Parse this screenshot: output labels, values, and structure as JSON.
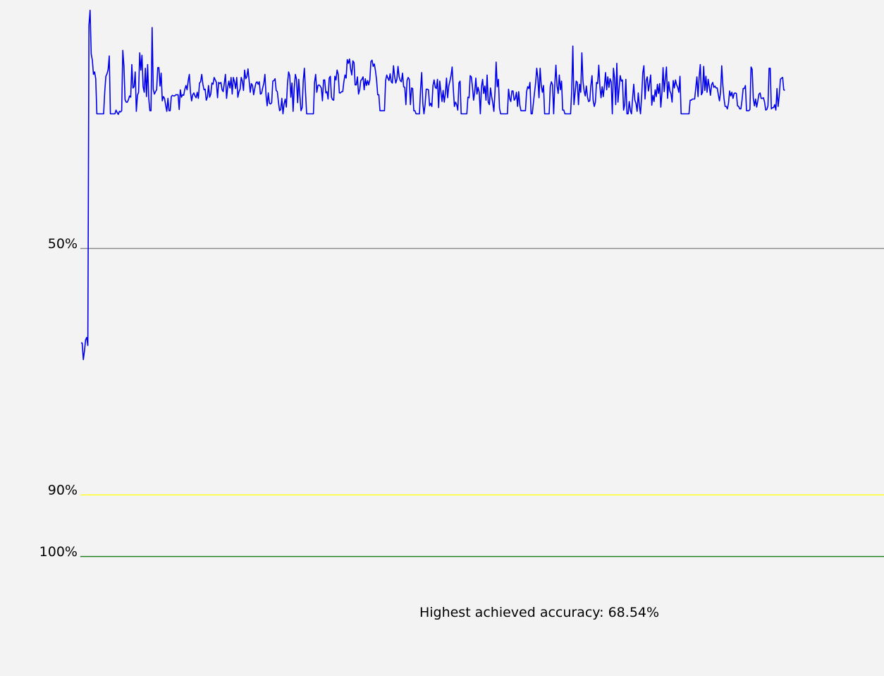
{
  "chart_data": {
    "type": "line",
    "reference_lines": [
      {
        "label": "50%",
        "value": 50,
        "color": "#8a8a8a"
      },
      {
        "label": "90%",
        "value": 90,
        "color": "#ffff33"
      },
      {
        "label": "100%",
        "value": 100,
        "color": "#1f7f1f"
      }
    ],
    "y_scale": {
      "top_value": 11,
      "bottom_value": 100
    },
    "ylim": [
      11,
      100
    ],
    "axis_direction": "accuracy increases downward",
    "grid": false,
    "legend": "none",
    "series": [
      {
        "color": "#0000ee",
        "values": [
          65.4,
          65.4,
          68.1,
          66.7,
          64.9,
          64.5,
          65.8,
          13.8,
          11.4,
          18.5,
          19.5,
          21.8,
          21.4,
          22.5,
          28.2,
          28.2,
          28.2,
          28.2,
          28.2,
          28.2,
          28.2,
          24.6,
          22.1,
          21.7,
          21.0,
          18.8,
          28.2,
          28.2,
          28.2,
          28.2,
          28.2,
          27.6,
          28.0,
          28.3,
          27.8,
          27.9,
          27.7,
          17.9,
          20.4,
          25.9,
          26.3,
          26.3,
          25.9,
          25.3,
          25.5,
          20.2,
          24.0,
          23.8,
          21.4,
          27.8,
          25.2,
          24.7,
          18.3,
          21.1,
          18.7,
          23.8,
          24.7,
          20.8,
          25.4,
          20.2,
          25.7,
          27.7,
          27.7,
          14.2,
          24.2,
          25.0,
          24.6,
          24.3,
          20.7,
          20.7,
          23.7,
          21.6,
          26.1,
          25.4,
          25.7,
          26.8,
          27.8,
          25.7,
          27.7,
          27.7,
          25.4,
          25.2,
          25.3,
          25.3,
          25.1,
          25.1,
          25.1,
          27.5,
          24.3,
          25.5,
          25.1,
          25.2,
          24.2,
          23.6,
          24.3,
          22.8,
          21.8,
          24.7,
          26.1,
          25.1,
          24.8,
          25.3,
          25.6,
          24.7,
          25.7,
          23.2,
          23.0,
          21.8,
          23.4,
          24.3,
          24.2,
          26.0,
          25.5,
          23.6,
          25.5,
          25.0,
          23.2,
          23.4,
          22.3,
          22.7,
          23.1,
          25.6,
          23.1,
          23.3,
          23.1,
          24.3,
          24.6,
          23.2,
          21.8,
          25.7,
          23.9,
          22.9,
          24.0,
          22.3,
          25.0,
          22.3,
          23.0,
          24.1,
          22.3,
          25.5,
          24.6,
          24.2,
          22.3,
          22.9,
          24.4,
          21.1,
          22.5,
          22.2,
          20.9,
          22.8,
          24.7,
          23.3,
          23.6,
          25.1,
          24.1,
          23.2,
          23.0,
          23.4,
          23.0,
          25.0,
          24.9,
          24.0,
          23.3,
          21.8,
          25.2,
          26.9,
          24.8,
          26.5,
          26.6,
          26.4,
          22.9,
          22.8,
          22.5,
          24.4,
          24.6,
          26.3,
          27.7,
          27.5,
          25.7,
          28.2,
          26.6,
          25.8,
          27.1,
          23.3,
          21.4,
          22.0,
          25.5,
          23.2,
          27.8,
          24.0,
          21.8,
          22.6,
          26.4,
          22.6,
          25.3,
          27.7,
          27.2,
          22.8,
          20.8,
          24.7,
          28.2,
          28.2,
          28.2,
          28.2,
          28.2,
          28.2,
          28.2,
          23.1,
          21.8,
          24.7,
          23.6,
          23.5,
          23.7,
          24.0,
          26.1,
          22.7,
          22.7,
          24.8,
          24.6,
          25.8,
          22.4,
          22.1,
          25.5,
          25.9,
          26.0,
          22.1,
          22.7,
          21.1,
          21.8,
          24.8,
          24.8,
          24.6,
          24.6,
          23.0,
          21.9,
          22.4,
          19.4,
          20.0,
          19.3,
          20.9,
          21.9,
          19.6,
          19.9,
          23.5,
          23.5,
          22.2,
          25.0,
          24.3,
          22.8,
          22.6,
          22.2,
          24.3,
          22.5,
          23.6,
          22.8,
          23.5,
          22.7,
          19.7,
          19.5,
          20.5,
          20.1,
          21.2,
          22.7,
          25.1,
          25.1,
          27.7,
          27.7,
          27.7,
          27.7,
          27.7,
          22.8,
          21.9,
          22.4,
          22.8,
          21.7,
          23.0,
          23.2,
          20.4,
          22.1,
          23.2,
          22.6,
          20.5,
          22.2,
          22.8,
          23.0,
          21.6,
          23.8,
          23.9,
          26.7,
          22.8,
          22.3,
          22.6,
          26.7,
          24.0,
          24.1,
          27.7,
          27.7,
          28.2,
          28.2,
          28.2,
          28.2,
          24.2,
          21.5,
          26.5,
          28.2,
          26.7,
          24.2,
          24.2,
          24.3,
          26.9,
          26.5,
          27.0,
          23.6,
          22.7,
          23.9,
          24.1,
          22.6,
          27.2,
          22.9,
          24.6,
          26.2,
          24.4,
          26.3,
          24.9,
          22.4,
          25.6,
          23.7,
          22.9,
          22.0,
          20.6,
          24.1,
          27.0,
          26.3,
          26.7,
          27.6,
          23.2,
          22.9,
          28.2,
          28.2,
          28.2,
          28.2,
          28.2,
          28.2,
          25.5,
          25.6,
          22.0,
          22.2,
          23.8,
          26.0,
          24.7,
          22.4,
          25.0,
          23.9,
          24.7,
          28.2,
          23.8,
          22.6,
          24.9,
          23.7,
          26.0,
          21.9,
          26.3,
          26.7,
          24.0,
          25.4,
          26.4,
          27.8,
          24.6,
          19.8,
          23.8,
          22.6,
          27.3,
          28.2,
          28.2,
          28.2,
          28.2,
          28.2,
          28.2,
          28.2,
          24.2,
          25.7,
          26.2,
          24.5,
          24.5,
          26.0,
          25.7,
          24.7,
          27.0,
          24.6,
          26.8,
          27.7,
          27.7,
          27.7,
          27.7,
          27.7,
          24.6,
          23.8,
          24.1,
          23.1,
          28.2,
          28.2,
          26.5,
          24.8,
          23.2,
          20.8,
          22.4,
          25.6,
          20.8,
          23.6,
          24.7,
          23.6,
          28.2,
          28.2,
          28.2,
          28.2,
          28.2,
          23.8,
          23.0,
          23.5,
          28.2,
          23.5,
          20.3,
          23.7,
          24.9,
          21.9,
          24.3,
          22.9,
          27.6,
          27.6,
          28.2,
          28.2,
          28.2,
          28.2,
          28.2,
          28.2,
          24.4,
          17.2,
          26.7,
          24.8,
          22.9,
          23.1,
          26.7,
          23.4,
          24.7,
          18.3,
          22.9,
          24.5,
          25.3,
          23.7,
          25.5,
          26.2,
          26.1,
          23.6,
          22.0,
          26.0,
          27.0,
          26.3,
          23.1,
          23.3,
          20.3,
          23.8,
          25.6,
          23.8,
          25.4,
          23.7,
          21.5,
          24.3,
          22.2,
          23.9,
          22.5,
          23.0,
          28.2,
          20.8,
          22.4,
          26.7,
          20.0,
          26.3,
          24.1,
          22.0,
          22.9,
          22.7,
          27.6,
          26.7,
          22.6,
          28.2,
          28.2,
          26.2,
          27.7,
          28.2,
          25.6,
          23.4,
          26.0,
          26.5,
          27.8,
          24.8,
          26.9,
          28.2,
          25.4,
          21.6,
          20.4,
          25.8,
          22.8,
          22.2,
          24.5,
          23.3,
          21.9,
          26.8,
          25.2,
          26.2,
          24.3,
          25.4,
          23.4,
          24.9,
          23.3,
          27.1,
          24.8,
          20.7,
          24.6,
          22.5,
          20.6,
          25.7,
          23.0,
          24.5,
          24.9,
          26.3,
          22.8,
          24.0,
          22.7,
          23.5,
          23.9,
          24.7,
          22.1,
          28.2,
          28.2,
          28.2,
          28.2,
          28.2,
          28.2,
          28.2,
          28.2,
          26.0,
          26.0,
          25.8,
          25.8,
          25.8,
          24.0,
          22.2,
          25.4,
          22.2,
          20.2,
          25.1,
          24.7,
          20.5,
          24.4,
          22.1,
          24.7,
          22.6,
          23.8,
          25.2,
          23.5,
          23.1,
          23.9,
          23.7,
          24.0,
          24.0,
          25.1,
          26.1,
          24.6,
          20.4,
          23.5,
          25.7,
          27.0,
          27.0,
          27.4,
          26.5,
          24.5,
          25.3,
          24.7,
          25.7,
          24.9,
          24.8,
          24.9,
          26.9,
          27.0,
          27.4,
          27.4,
          26.0,
          24.1,
          24.1,
          23.6,
          27.7,
          27.7,
          27.7,
          27.5,
          20.6,
          21.0,
          25.7,
          26.9,
          25.8,
          27.1,
          26.1,
          25.0,
          24.8,
          25.7,
          25.7,
          25.6,
          26.3,
          27.6,
          27.5,
          26.9,
          20.8,
          20.8,
          27.4,
          27.2,
          27.2,
          26.7,
          27.6,
          24.1,
          27.0,
          25.3,
          22.6,
          22.4,
          22.3,
          24.3,
          24.4
        ]
      }
    ],
    "annotation": "Highest achieved accuracy: 68.54%"
  }
}
